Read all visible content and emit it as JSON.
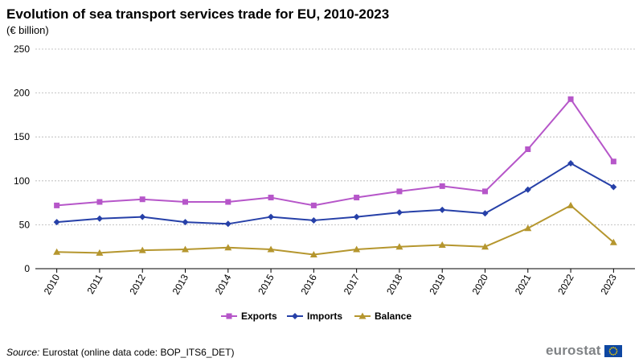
{
  "chart_data": {
    "type": "line",
    "title": "Evolution of sea transport services trade for EU, 2010-2023",
    "subtitle": "(€ billion)",
    "x": [
      "2010",
      "2011",
      "2012",
      "2013",
      "2014",
      "2015",
      "2016",
      "2017",
      "2018",
      "2019",
      "2020",
      "2021",
      "2022",
      "2023"
    ],
    "yticks": [
      "0",
      "50",
      "100",
      "150",
      "200",
      "250"
    ],
    "ylim": [
      0,
      250
    ],
    "grid": true,
    "legend_position": "bottom",
    "series": [
      {
        "name": "Exports",
        "color": "#b656c9",
        "marker": "square",
        "values": [
          72,
          76,
          79,
          76,
          76,
          81,
          72,
          81,
          88,
          94,
          88,
          136,
          193,
          122
        ]
      },
      {
        "name": "Imports",
        "color": "#2640a8",
        "marker": "diamond",
        "values": [
          53,
          57,
          59,
          53,
          51,
          59,
          55,
          59,
          64,
          67,
          63,
          90,
          120,
          93
        ]
      },
      {
        "name": "Balance",
        "color": "#b5962e",
        "marker": "triangle",
        "values": [
          19,
          18,
          21,
          22,
          24,
          22,
          16,
          22,
          25,
          27,
          25,
          46,
          72,
          30
        ]
      }
    ]
  },
  "source": {
    "label": "Source:",
    "text": " Eurostat (online data code: BOP_ITS6_DET)"
  },
  "logo": {
    "text": "eurostat",
    "flag_icon": "eu-flag-icon"
  }
}
